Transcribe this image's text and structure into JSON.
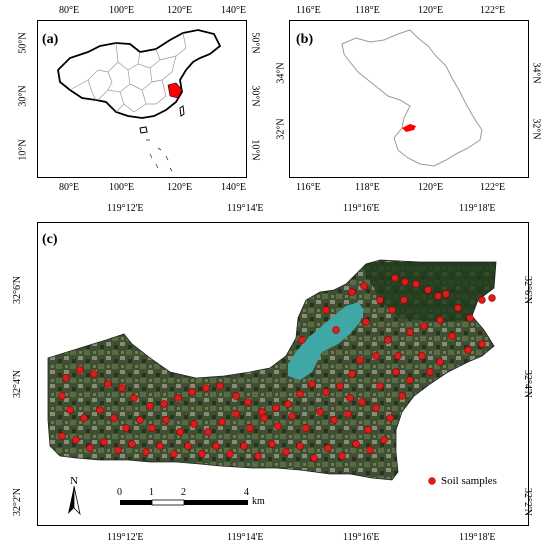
{
  "panels": {
    "a": {
      "letter": "(a)",
      "ticks_x": [
        "80°E",
        "100°E",
        "120°E",
        "140°E"
      ],
      "ticks_y": [
        "50°N",
        "30°N",
        "10°N"
      ]
    },
    "b": {
      "letter": "(b)",
      "ticks_x": [
        "116°E",
        "118°E",
        "120°E",
        "122°E"
      ],
      "ticks_y": [
        "34°N",
        "32°N"
      ]
    },
    "c": {
      "letter": "(c)",
      "ticks_x": [
        "119°12'E",
        "119°14'E",
        "119°16'E",
        "119°18'E"
      ],
      "ticks_y": [
        "32°6'N",
        "32°4'N",
        "32°2'N"
      ],
      "legend_label": "Soil samples",
      "north_label": "N",
      "scale_labels": [
        "0",
        "1",
        "2",
        "4"
      ],
      "scale_unit": "km"
    }
  },
  "colors": {
    "highlight": "#ff0000",
    "sample_point": "#e31a1c",
    "boundary_thin": "#999999",
    "boundary_thick": "#000000"
  }
}
